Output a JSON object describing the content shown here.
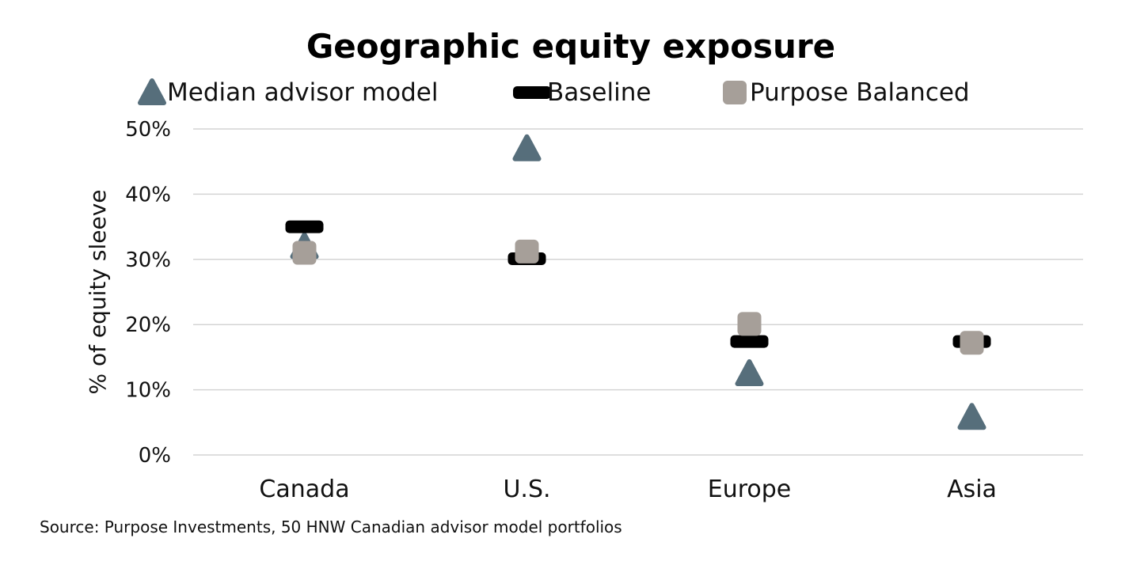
{
  "chart_data": {
    "type": "scatter",
    "title": "Geographic equity exposure",
    "ylabel": "% of equity sleeve",
    "xlabel": "",
    "categories": [
      "Canada",
      "U.S.",
      "Europe",
      "Asia"
    ],
    "ylim": [
      0,
      50
    ],
    "yticks": [
      "0%",
      "10%",
      "20%",
      "30%",
      "40%",
      "50%"
    ],
    "grid": true,
    "legend_position": "top",
    "series": [
      {
        "name": "Median advisor model",
        "marker": "triangle",
        "color": "#566e7b",
        "values": [
          32,
          47,
          12.5,
          5.8
        ]
      },
      {
        "name": "Baseline",
        "marker": "dash",
        "color": "#000000",
        "values": [
          35,
          30.1,
          17.4,
          17.4
        ]
      },
      {
        "name": "Purpose Balanced",
        "marker": "square",
        "color": "#a69f99",
        "values": [
          31,
          31.2,
          20.1,
          17.2
        ]
      }
    ],
    "source": "Source: Purpose Investments, 50 HNW Canadian advisor model portfolios"
  }
}
